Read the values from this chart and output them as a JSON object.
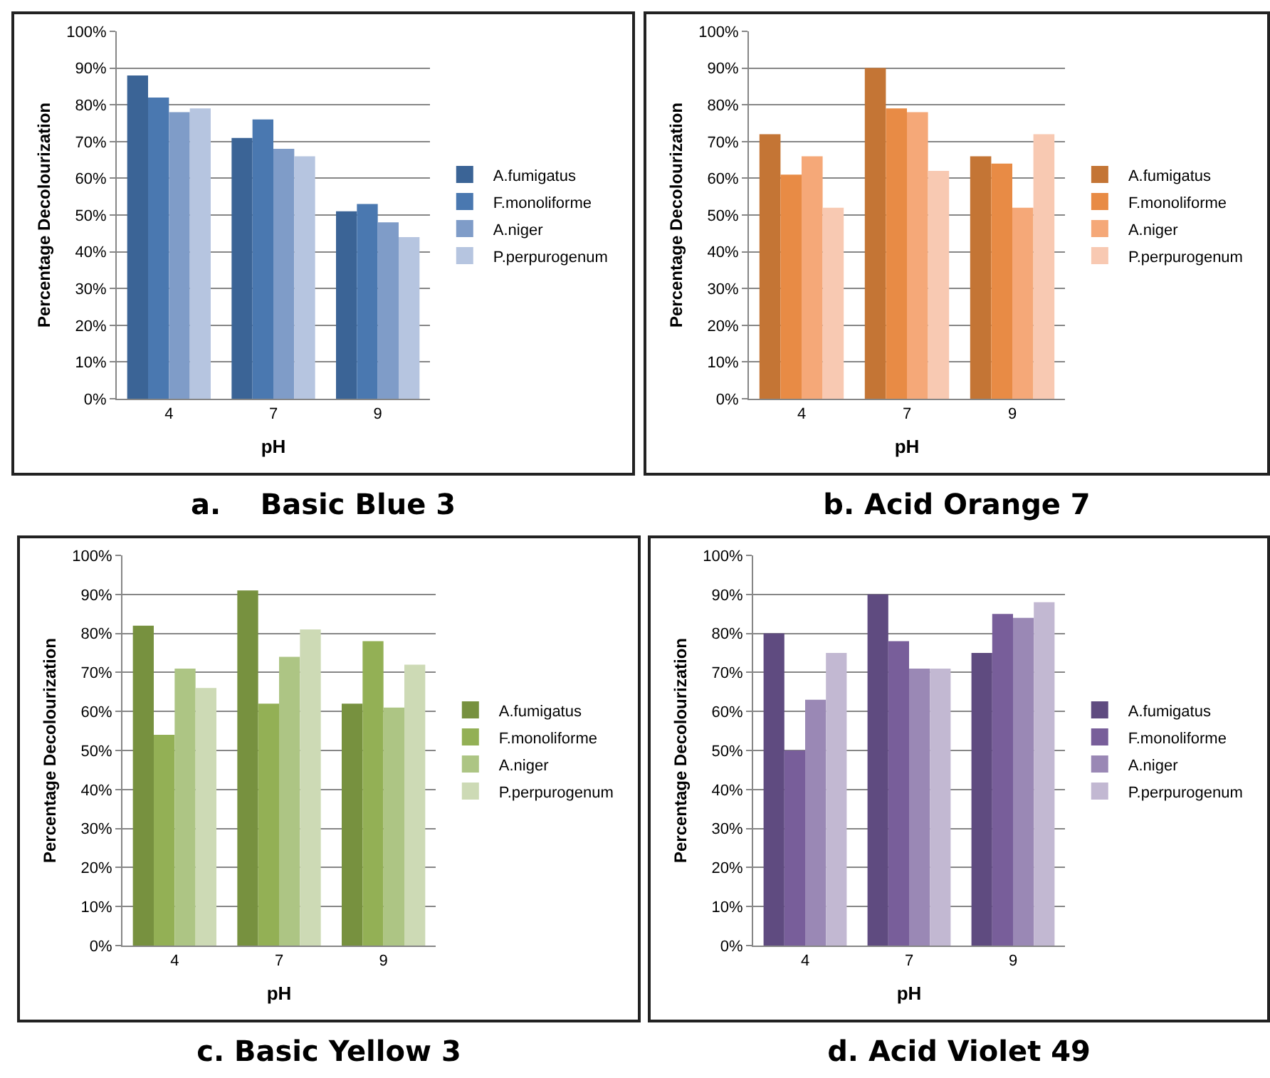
{
  "chart_data": [
    {
      "type": "bar",
      "title": "a.    Basic Blue 3",
      "xlabel": "pH",
      "ylabel": "Percentage Decolourization",
      "categories": [
        "4",
        "7",
        "9"
      ],
      "series": [
        {
          "name": "A.fumigatus",
          "color": "#3b6496",
          "values": [
            88,
            71,
            51
          ]
        },
        {
          "name": "F.monoliforme",
          "color": "#4a78b0",
          "values": [
            82,
            76,
            53
          ]
        },
        {
          "name": "A.niger",
          "color": "#7f9cc8",
          "values": [
            78,
            68,
            48
          ]
        },
        {
          "name": "P.perpurogenum",
          "color": "#b6c5e0",
          "values": [
            79,
            66,
            44
          ]
        }
      ],
      "ylim": [
        0,
        100
      ],
      "yticks": [
        {
          "value": 0,
          "label": "0%"
        },
        {
          "value": 10,
          "label": "10%"
        },
        {
          "value": 20,
          "label": "20%"
        },
        {
          "value": 30,
          "label": "30%"
        },
        {
          "value": 40,
          "label": "40%"
        },
        {
          "value": 50,
          "label": "50%"
        },
        {
          "value": 60,
          "label": "60%"
        },
        {
          "value": 70,
          "label": "70%"
        },
        {
          "value": 80,
          "label": "80%"
        },
        {
          "value": 90,
          "label": "90%"
        },
        {
          "value": 100,
          "label": "100%"
        }
      ],
      "grid": "y",
      "legend": "right"
    },
    {
      "type": "bar",
      "title": "b. Acid Orange 7",
      "xlabel": "pH",
      "ylabel": "Percentage Decolourization",
      "categories": [
        "4",
        "7",
        "9"
      ],
      "series": [
        {
          "name": "A.fumigatus",
          "color": "#c47535",
          "values": [
            72,
            90,
            66
          ]
        },
        {
          "name": "F.monoliforme",
          "color": "#e88b45",
          "values": [
            61,
            79,
            64
          ]
        },
        {
          "name": "A.niger",
          "color": "#f5a878",
          "values": [
            66,
            78,
            52
          ]
        },
        {
          "name": "P.perpurogenum",
          "color": "#f8c9b2",
          "values": [
            52,
            62,
            72
          ]
        }
      ],
      "ylim": [
        0,
        100
      ],
      "yticks": [
        {
          "value": 0,
          "label": "0%"
        },
        {
          "value": 10,
          "label": "10%"
        },
        {
          "value": 20,
          "label": "20%"
        },
        {
          "value": 30,
          "label": "30%"
        },
        {
          "value": 40,
          "label": "40%"
        },
        {
          "value": 50,
          "label": "50%"
        },
        {
          "value": 60,
          "label": "60%"
        },
        {
          "value": 70,
          "label": "70%"
        },
        {
          "value": 80,
          "label": "80%"
        },
        {
          "value": 90,
          "label": "90%"
        },
        {
          "value": 100,
          "label": "100%"
        }
      ],
      "grid": "y",
      "legend": "right"
    },
    {
      "type": "bar",
      "title": "c. Basic Yellow 3",
      "xlabel": "pH",
      "ylabel": "Percentage Decolourization",
      "categories": [
        "4",
        "7",
        "9"
      ],
      "series": [
        {
          "name": "A.fumigatus",
          "color": "#77913f",
          "values": [
            82,
            91,
            62
          ]
        },
        {
          "name": "F.monoliforme",
          "color": "#93b055",
          "values": [
            54,
            62,
            78
          ]
        },
        {
          "name": "A.niger",
          "color": "#adc584",
          "values": [
            71,
            74,
            61
          ]
        },
        {
          "name": "P.perpurogenum",
          "color": "#cddab5",
          "values": [
            66,
            81,
            72
          ]
        }
      ],
      "ylim": [
        0,
        100
      ],
      "yticks": [
        {
          "value": 0,
          "label": "0%"
        },
        {
          "value": 10,
          "label": "10%"
        },
        {
          "value": 20,
          "label": "20%"
        },
        {
          "value": 30,
          "label": "30%"
        },
        {
          "value": 40,
          "label": "40%"
        },
        {
          "value": 50,
          "label": "50%"
        },
        {
          "value": 60,
          "label": "60%"
        },
        {
          "value": 70,
          "label": "70%"
        },
        {
          "value": 80,
          "label": "80%"
        },
        {
          "value": 90,
          "label": "90%"
        },
        {
          "value": 100,
          "label": "100%"
        }
      ],
      "grid": "y",
      "legend": "right"
    },
    {
      "type": "bar",
      "title": "d. Acid Violet 49",
      "xlabel": "pH",
      "ylabel": "Percentage Decolourization",
      "categories": [
        "4",
        "7",
        "9"
      ],
      "series": [
        {
          "name": "A.fumigatus",
          "color": "#5f4b80",
          "values": [
            80,
            90,
            75
          ]
        },
        {
          "name": "F.monoliforme",
          "color": "#785e9a",
          "values": [
            50,
            78,
            85
          ]
        },
        {
          "name": "A.niger",
          "color": "#9a88b5",
          "values": [
            63,
            71,
            84
          ]
        },
        {
          "name": "P.perpurogenum",
          "color": "#c2b8d2",
          "values": [
            75,
            71,
            88
          ]
        }
      ],
      "ylim": [
        0,
        100
      ],
      "yticks": [
        {
          "value": 0,
          "label": "0%"
        },
        {
          "value": 10,
          "label": "10%"
        },
        {
          "value": 20,
          "label": "20%"
        },
        {
          "value": 30,
          "label": "30%"
        },
        {
          "value": 40,
          "label": "40%"
        },
        {
          "value": 50,
          "label": "50%"
        },
        {
          "value": 60,
          "label": "60%"
        },
        {
          "value": 70,
          "label": "70%"
        },
        {
          "value": 80,
          "label": "80%"
        },
        {
          "value": 90,
          "label": "90%"
        },
        {
          "value": 100,
          "label": "100%"
        }
      ],
      "grid": "y",
      "legend": "right"
    }
  ]
}
